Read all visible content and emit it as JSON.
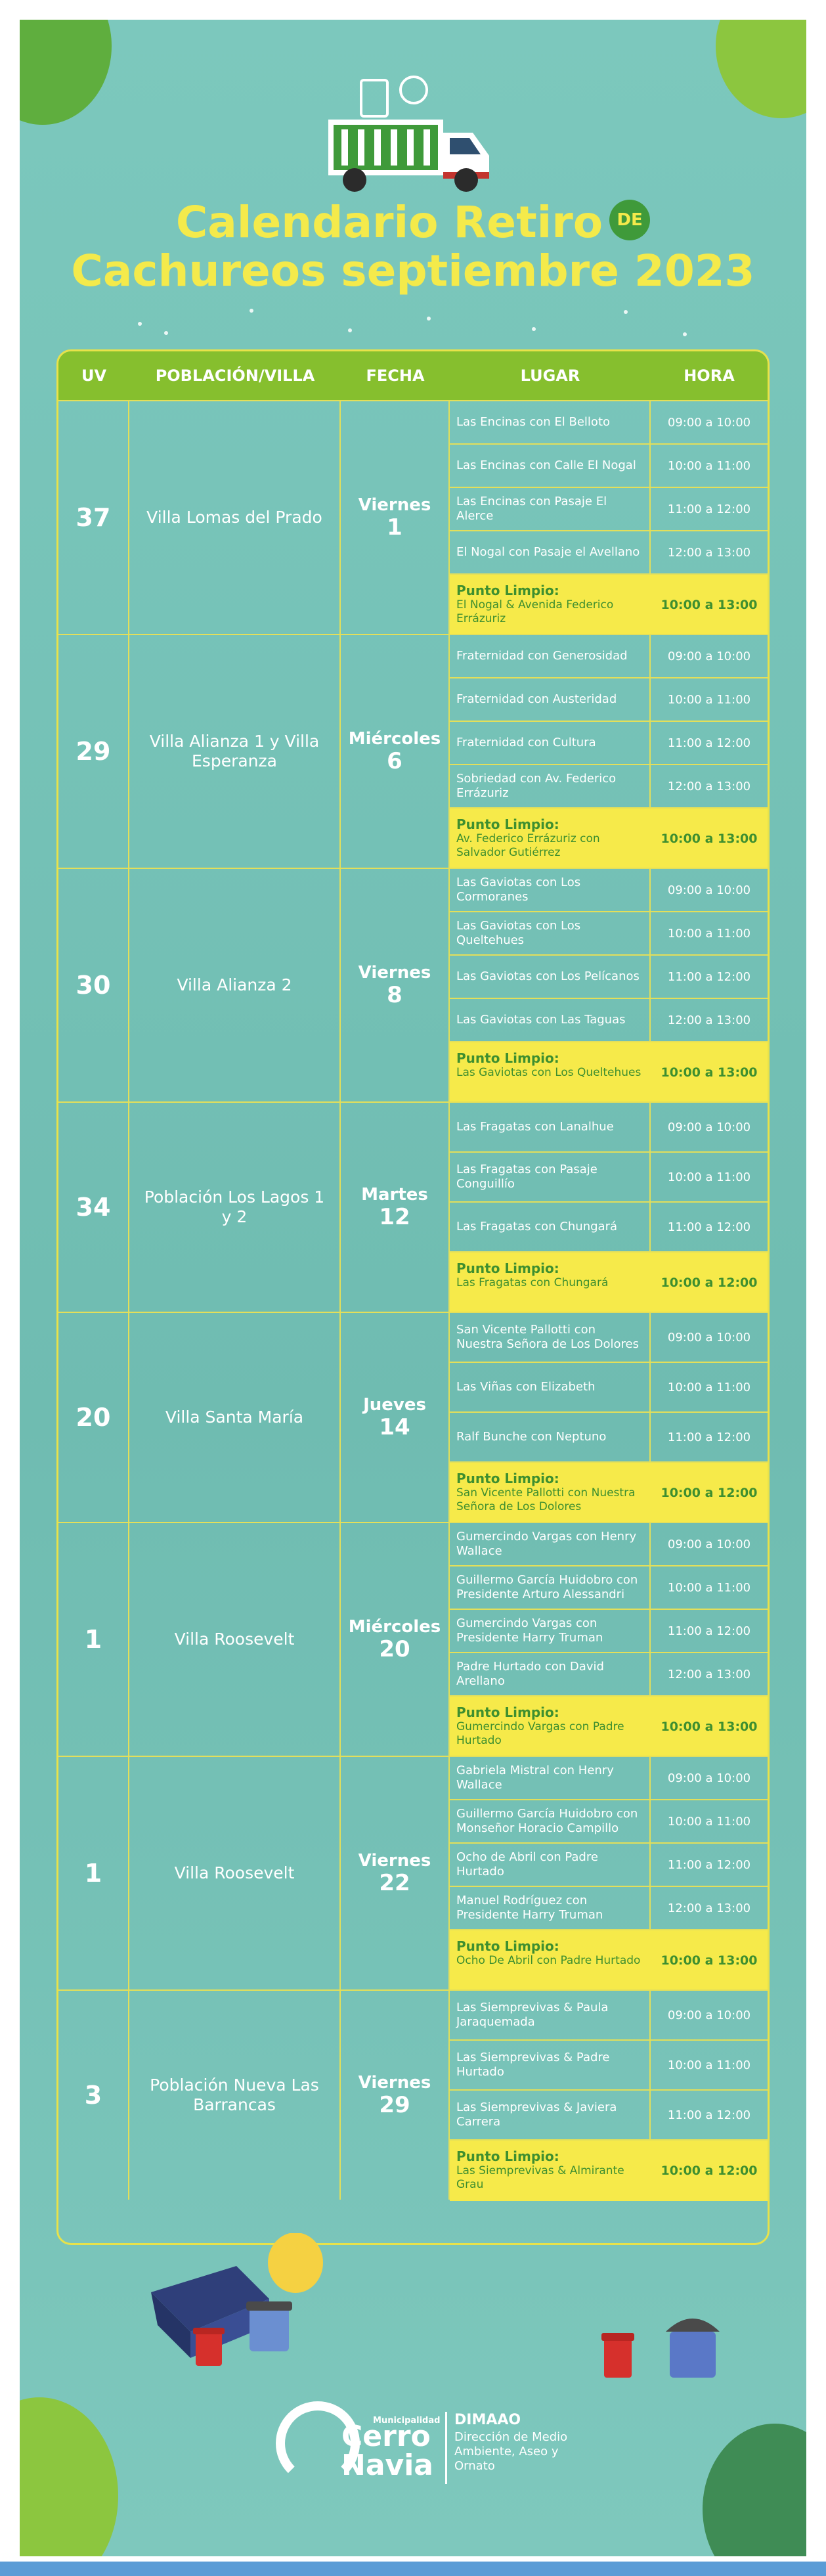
{
  "title": {
    "line1": "Calendario Retiro",
    "de": "DE",
    "line2": "Cachureos septiembre 2023"
  },
  "headers": {
    "uv": "UV",
    "poblacion": "POBLACIÓN/VILLA",
    "fecha": "FECHA",
    "lugar": "LUGAR",
    "hora": "HORA"
  },
  "groups": [
    {
      "uv": "37",
      "poblacion": "Villa Lomas del Prado",
      "dia": "Viernes",
      "num": "1",
      "rows": [
        {
          "lugar": "Las Encinas con El Belloto",
          "hora": "09:00 a 10:00"
        },
        {
          "lugar": "Las Encinas con Calle El Nogal",
          "hora": "10:00 a 11:00"
        },
        {
          "lugar": "Las Encinas con Pasaje El Alerce",
          "hora": "11:00 a 12:00"
        },
        {
          "lugar": "El Nogal con Pasaje el Avellano",
          "hora": "12:00 a 13:00"
        }
      ],
      "punto": {
        "label": "Punto Limpio:",
        "lugar": "El Nogal & Avenida Federico Errázuriz",
        "hora": "10:00 a 13:00"
      }
    },
    {
      "uv": "29",
      "poblacion": "Villa Alianza 1 y Villa Esperanza",
      "dia": "Miércoles",
      "num": "6",
      "rows": [
        {
          "lugar": "Fraternidad con Generosidad",
          "hora": "09:00 a 10:00"
        },
        {
          "lugar": "Fraternidad con Austeridad",
          "hora": "10:00 a 11:00"
        },
        {
          "lugar": "Fraternidad con Cultura",
          "hora": "11:00 a 12:00"
        },
        {
          "lugar": "Sobriedad con Av. Federico Errázuriz",
          "hora": "12:00 a 13:00"
        }
      ],
      "punto": {
        "label": "Punto Limpio:",
        "lugar": "Av. Federico Errázuriz con Salvador Gutiérrez",
        "hora": "10:00 a 13:00"
      }
    },
    {
      "uv": "30",
      "poblacion": "Villa Alianza 2",
      "dia": "Viernes",
      "num": "8",
      "rows": [
        {
          "lugar": "Las Gaviotas con Los Cormoranes",
          "hora": "09:00 a 10:00"
        },
        {
          "lugar": "Las Gaviotas con Los Queltehues",
          "hora": "10:00 a 11:00"
        },
        {
          "lugar": "Las Gaviotas con Los Pelícanos",
          "hora": "11:00 a 12:00"
        },
        {
          "lugar": "Las Gaviotas con Las Taguas",
          "hora": "12:00 a 13:00"
        }
      ],
      "punto": {
        "label": "Punto Limpio:",
        "lugar": "Las Gaviotas con Los Queltehues",
        "hora": "10:00 a 13:00"
      }
    },
    {
      "uv": "34",
      "poblacion": "Población Los Lagos 1 y 2",
      "dia": "Martes",
      "num": "12",
      "rows": [
        {
          "lugar": "Las Fragatas con Lanalhue",
          "hora": "09:00 a 10:00"
        },
        {
          "lugar": "Las Fragatas con Pasaje Conguillío",
          "hora": "10:00 a 11:00"
        },
        {
          "lugar": "Las Fragatas con Chungará",
          "hora": "11:00 a 12:00"
        }
      ],
      "punto": {
        "label": "Punto Limpio:",
        "lugar": "Las Fragatas con Chungará",
        "hora": "10:00 a 12:00"
      }
    },
    {
      "uv": "20",
      "poblacion": "Villa Santa María",
      "dia": "Jueves",
      "num": "14",
      "rows": [
        {
          "lugar": "San Vicente Pallotti con Nuestra Señora de Los Dolores",
          "hora": "09:00 a 10:00"
        },
        {
          "lugar": "Las Viñas con Elizabeth",
          "hora": "10:00 a 11:00"
        },
        {
          "lugar": "Ralf Bunche con Neptuno",
          "hora": "11:00 a 12:00"
        }
      ],
      "punto": {
        "label": "Punto Limpio:",
        "lugar": "San Vicente Pallotti con Nuestra Señora de Los Dolores",
        "hora": "10:00 a 12:00"
      }
    },
    {
      "uv": "1",
      "poblacion": "Villa Roosevelt",
      "dia": "Miércoles",
      "num": "20",
      "rows": [
        {
          "lugar": "Gumercindo Vargas con Henry Wallace",
          "hora": "09:00 a 10:00"
        },
        {
          "lugar": "Guillermo García Huidobro con Presidente Arturo Alessandri",
          "hora": "10:00 a 11:00"
        },
        {
          "lugar": "Gumercindo Vargas con Presidente Harry Truman",
          "hora": "11:00 a 12:00"
        },
        {
          "lugar": "Padre Hurtado con David Arellano",
          "hora": "12:00 a 13:00"
        }
      ],
      "punto": {
        "label": "Punto Limpio:",
        "lugar": "Gumercindo Vargas con Padre Hurtado",
        "hora": "10:00 a 13:00"
      }
    },
    {
      "uv": "1",
      "poblacion": "Villa Roosevelt",
      "dia": "Viernes",
      "num": "22",
      "rows": [
        {
          "lugar": "Gabriela Mistral con Henry Wallace",
          "hora": "09:00 a 10:00"
        },
        {
          "lugar": "Guillermo García Huidobro con Monseñor Horacio Campillo",
          "hora": "10:00 a 11:00"
        },
        {
          "lugar": "Ocho de Abril con Padre Hurtado",
          "hora": "11:00 a 12:00"
        },
        {
          "lugar": "Manuel Rodríguez con Presidente Harry Truman",
          "hora": "12:00 a 13:00"
        }
      ],
      "punto": {
        "label": "Punto Limpio:",
        "lugar": "Ocho De Abril con Padre Hurtado",
        "hora": "10:00 a 13:00"
      }
    },
    {
      "uv": "3",
      "poblacion": "Población Nueva Las Barrancas",
      "dia": "Viernes",
      "num": "29",
      "rows": [
        {
          "lugar": "Las Siemprevivas & Paula Jaraquemada",
          "hora": "09:00 a 10:00"
        },
        {
          "lugar": "Las Siemprevivas & Padre Hurtado",
          "hora": "10:00 a 11:00"
        },
        {
          "lugar": "Las Siemprevivas & Javiera Carrera",
          "hora": "11:00 a 12:00"
        }
      ],
      "punto": {
        "label": "Punto Limpio:",
        "lugar": "Las Siemprevivas & Almirante Grau",
        "hora": "10:00 a 12:00"
      }
    }
  ],
  "footer": {
    "municipalidad": "Municipalidad",
    "cerro": "Cerro",
    "navia": "Navia",
    "dimaao": "DIMAAO",
    "direccion": "Dirección de Medio Ambiente, Aseo y Ornato"
  },
  "colors": {
    "background": "#7cc8bd",
    "accent_yellow": "#f4ea4b",
    "header_green": "#86bf2e",
    "text_green": "#3e8f2f"
  }
}
